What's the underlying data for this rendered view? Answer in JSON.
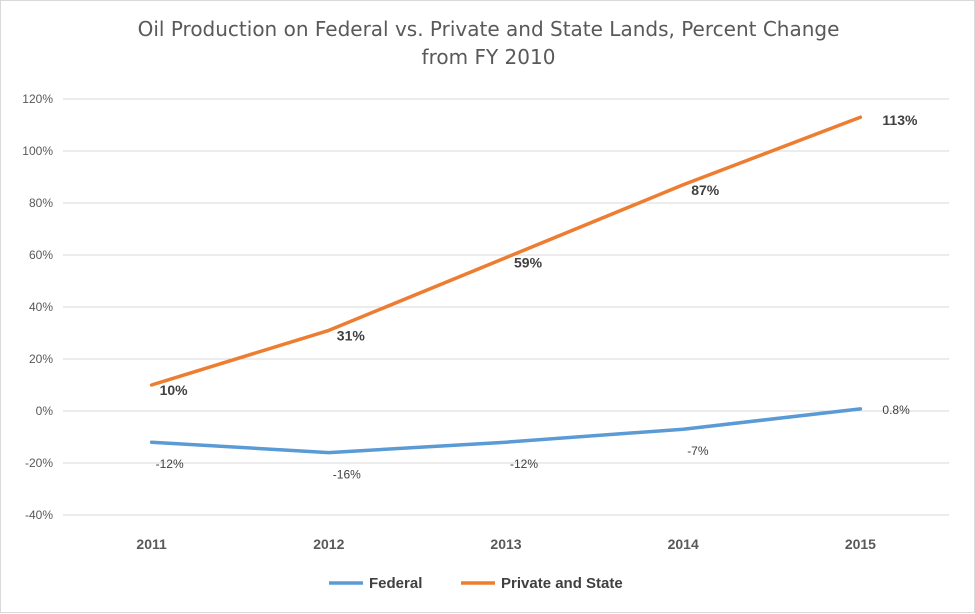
{
  "chart_data": {
    "type": "line",
    "title_line1": "Oil Production on Federal vs. Private and State Lands, Percent Change",
    "title_line2": "from FY 2010",
    "categories": [
      "2011",
      "2012",
      "2013",
      "2014",
      "2015"
    ],
    "ylim": [
      -40,
      120
    ],
    "y_ticks": [
      120,
      100,
      80,
      60,
      40,
      20,
      0,
      -20,
      -40
    ],
    "y_tick_labels": [
      "120%",
      "100%",
      "80%",
      "60%",
      "40%",
      "20%",
      "0%",
      "-20%",
      "-40%"
    ],
    "grid": true,
    "legend_position": "bottom",
    "series": [
      {
        "name": "Federal",
        "color": "#5b9bd5",
        "values": [
          -12,
          -16,
          -12,
          -7,
          0.8
        ],
        "labels": [
          "-12%",
          "-16%",
          "-12%",
          "-7%",
          "0.8%"
        ]
      },
      {
        "name": "Private and State",
        "color": "#ed7d31",
        "values": [
          10,
          31,
          59,
          87,
          113
        ],
        "labels": [
          "10%",
          "31%",
          "59%",
          "87%",
          "113%"
        ]
      }
    ]
  }
}
